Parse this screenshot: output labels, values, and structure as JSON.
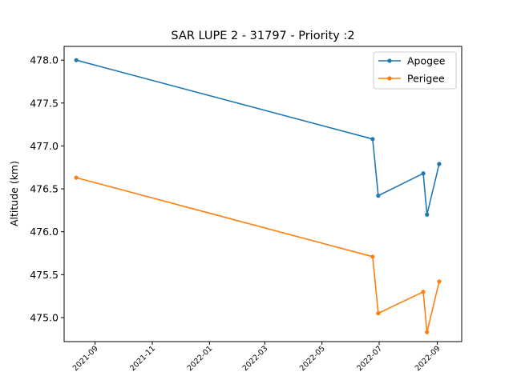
{
  "chart_data": {
    "type": "line",
    "title": "SAR LUPE 2 - 31797 - Priority :2",
    "xlabel": "",
    "ylabel": "Altitude (km)",
    "x_type": "date",
    "xlim": [
      "2021-07-30",
      "2022-09-27"
    ],
    "ylim": [
      474.72,
      478.16
    ],
    "yticks": [
      475.0,
      475.5,
      476.0,
      476.5,
      477.0,
      477.5,
      478.0
    ],
    "ytick_labels": [
      "475.0",
      "475.5",
      "476.0",
      "476.5",
      "477.0",
      "477.5",
      "478.0"
    ],
    "xticks": [
      "2021-09-01",
      "2021-11-01",
      "2022-01-01",
      "2022-03-01",
      "2022-05-01",
      "2022-07-01",
      "2022-09-01"
    ],
    "xtick_labels": [
      "2021-09",
      "2021-11",
      "2022-01",
      "2022-03",
      "2022-05",
      "2022-07",
      "2022-09"
    ],
    "grid": false,
    "legend_position": "top-right",
    "series": [
      {
        "name": "Apogee",
        "color": "#1f77b4",
        "x": [
          "2021-08-12",
          "2022-06-24",
          "2022-06-30",
          "2022-08-17",
          "2022-08-21",
          "2022-09-03"
        ],
        "y": [
          478.0,
          477.08,
          476.42,
          476.68,
          476.2,
          476.79
        ]
      },
      {
        "name": "Perigee",
        "color": "#ff7f0e",
        "x": [
          "2021-08-12",
          "2022-06-24",
          "2022-06-30",
          "2022-08-17",
          "2022-08-21",
          "2022-09-03"
        ],
        "y": [
          476.63,
          475.71,
          475.05,
          475.3,
          474.83,
          475.42
        ]
      }
    ]
  }
}
